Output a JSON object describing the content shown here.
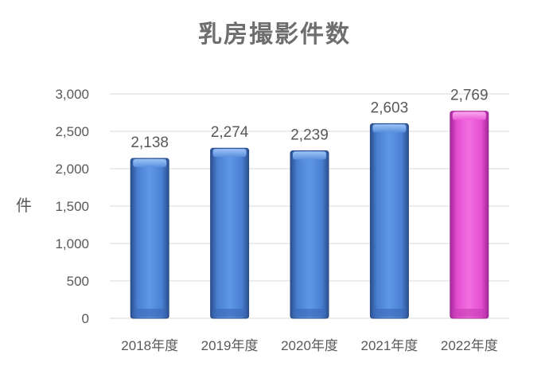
{
  "chart_data": {
    "type": "bar",
    "title": "乳房撮影件数",
    "ylabel": "件",
    "xlabel": "",
    "categories": [
      "2018年度",
      "2019年度",
      "2020年度",
      "2021年度",
      "2022年度"
    ],
    "values": [
      2138,
      2274,
      2239,
      2603,
      2769
    ],
    "value_labels": [
      "2,138",
      "2,274",
      "2,239",
      "2,603",
      "2,769"
    ],
    "ylim": [
      0,
      3000
    ],
    "yticks": [
      0,
      500,
      1000,
      1500,
      2000,
      2500,
      3000
    ],
    "ytick_labels": [
      "0",
      "500",
      "1,000",
      "1,500",
      "2,000",
      "2,500",
      "3,000"
    ],
    "grid": true,
    "legend": "none",
    "colors": {
      "bar": "#4f86d9",
      "highlight_bar": "#ee55d6",
      "grid": "#d9d9d9",
      "text": "#595959",
      "title": "#6e6e6e"
    },
    "highlight_index": 4
  }
}
